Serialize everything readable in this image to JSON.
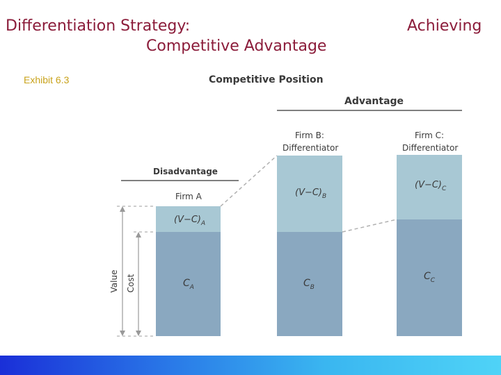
{
  "slide": {
    "title_line1": "Differentiation Strategy:",
    "title_line2": "Competitive Advantage",
    "title_right": "Achieving",
    "exhibit": "Exhibit 6.3"
  },
  "diagram": {
    "heading": "Competitive Position",
    "advantage_label": "Advantage",
    "disadvantage_label": "Disadvantage",
    "value_axis_label": "Value",
    "cost_axis_label": "Cost",
    "firms": [
      {
        "name": "Firm A",
        "role": "",
        "value_label": "(V−C)",
        "value_sub": "A",
        "cost_label": "C",
        "cost_sub": "A"
      },
      {
        "name": "Firm B:",
        "role": "Differentiator",
        "value_label": "(V−C)",
        "value_sub": "B",
        "cost_label": "C",
        "cost_sub": "B"
      },
      {
        "name": "Firm C:",
        "role": "Differentiator",
        "value_label": "(V−C)",
        "value_sub": "C",
        "cost_label": "C",
        "cost_sub": "C"
      }
    ],
    "colors": {
      "value_fill": "#a8c8d4",
      "cost_fill": "#8aa8c0",
      "title": "#8b1c3a",
      "exhibit": "#c9a31c"
    }
  }
}
